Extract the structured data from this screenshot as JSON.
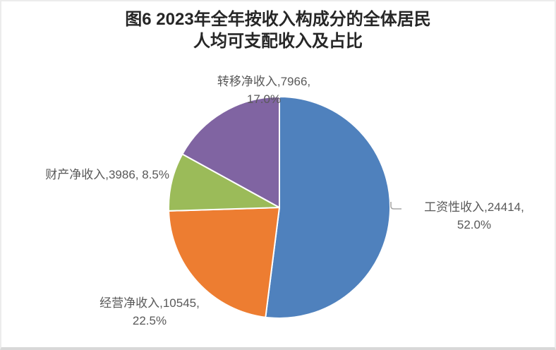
{
  "title": {
    "line1": "图6 2023年全年按收入构成分的全体居民",
    "line2": "人均可支配收入及占比"
  },
  "chart_data": {
    "type": "pie",
    "title": "图6 2023年全年按收入构成分的全体居民人均可支配收入及占比",
    "categories": [
      "工资性收入",
      "经营净收入",
      "财产净收入",
      "转移净收入"
    ],
    "values": [
      24414,
      10545,
      3986,
      7966
    ],
    "percents": [
      52.0,
      22.5,
      8.5,
      17.0
    ],
    "colors": [
      "#4f81bd",
      "#ed7d31",
      "#9bbb59",
      "#8064a2"
    ],
    "start_angle_deg": 0,
    "direction": "clockwise",
    "legend": "none",
    "slice_gap_color": "#ffffff",
    "leader_line_color": "#a6a6a6",
    "label_color": "#595959"
  },
  "labels": {
    "wage": {
      "line1": "工资性收入,24414,",
      "line2": "52.0%"
    },
    "business": {
      "line1": "经营净收入,10545,",
      "line2": "22.5%"
    },
    "property": {
      "line1": "财产净收入,3986, 8.5%"
    },
    "transfer": {
      "line1": "转移净收入,7966,",
      "line2": "17.0%"
    }
  }
}
